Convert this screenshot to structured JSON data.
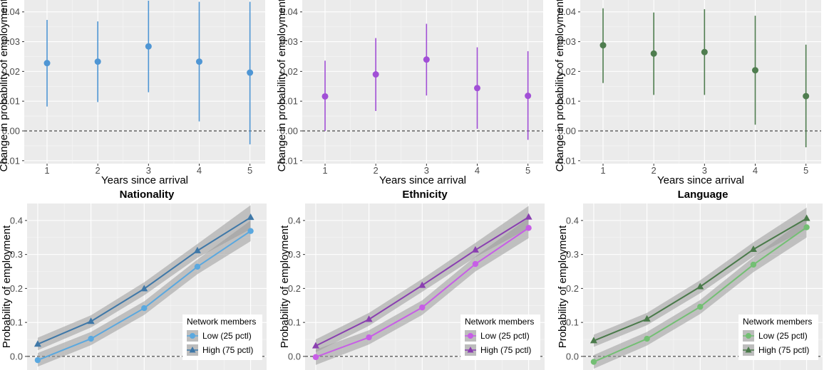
{
  "chart_data": [
    {
      "type": "scatter",
      "subtype": "point-range",
      "color": "#4f96d4",
      "marker": "circle",
      "title": "",
      "xlabel": "Years since arrival",
      "ylabel": "Change in probability of employment (",
      "x": [
        1,
        2,
        3,
        4,
        5
      ],
      "y": [
        0.0228,
        0.0233,
        0.0284,
        0.0233,
        0.0196
      ],
      "lower": [
        0.0082,
        0.0097,
        0.013,
        0.0032,
        -0.0045
      ],
      "upper": [
        0.0373,
        0.0368,
        0.0438,
        0.0434,
        0.0434
      ],
      "xticks": [
        "1",
        "2",
        "3",
        "4",
        "5"
      ],
      "yticks": [
        "-0.01",
        "0.00",
        "0.01",
        "0.02",
        "0.03",
        "0.04"
      ],
      "ylim": [
        -0.011,
        0.044
      ],
      "reference_line": 0
    },
    {
      "type": "scatter",
      "subtype": "point-range",
      "color": "#a14fd6",
      "marker": "circle",
      "title": "",
      "xlabel": "Years since arrival",
      "ylabel": "Change in probability of employment (",
      "x": [
        1,
        2,
        3,
        4,
        5
      ],
      "y": [
        0.0116,
        0.019,
        0.024,
        0.0144,
        0.0118
      ],
      "lower": [
        0.0,
        0.0067,
        0.0119,
        0.0007,
        -0.003
      ],
      "upper": [
        0.0236,
        0.0312,
        0.036,
        0.0281,
        0.0268
      ],
      "xticks": [
        "1",
        "2",
        "3",
        "4",
        "5"
      ],
      "yticks": [
        "-0.01",
        "0.00",
        "0.01",
        "0.02",
        "0.03",
        "0.04"
      ],
      "ylim": [
        -0.011,
        0.044
      ],
      "reference_line": 0
    },
    {
      "type": "scatter",
      "subtype": "point-range",
      "color": "#4f7d4f",
      "marker": "circle",
      "title": "",
      "xlabel": "Years since arrival",
      "ylabel": "Change in probability of employment (",
      "x": [
        1,
        2,
        3,
        4,
        5
      ],
      "y": [
        0.0288,
        0.026,
        0.0265,
        0.0204,
        0.0117
      ],
      "lower": [
        0.0161,
        0.0121,
        0.0121,
        0.0021,
        -0.0055
      ],
      "upper": [
        0.0412,
        0.0398,
        0.0409,
        0.0387,
        0.029
      ],
      "xticks": [
        "1",
        "2",
        "3",
        "4",
        "5"
      ],
      "yticks": [
        "-0.01",
        "0.00",
        "0.01",
        "0.02",
        "0.03",
        "0.04"
      ],
      "ylim": [
        -0.011,
        0.044
      ],
      "reference_line": 0
    },
    {
      "type": "line",
      "title": "Nationality",
      "xlabel": "",
      "ylabel": "Probability of employment",
      "x": [
        1,
        2,
        3,
        4,
        5
      ],
      "yticks": [
        "0.0",
        "0.1",
        "0.2",
        "0.3",
        "0.4"
      ],
      "ylim": [
        -0.04,
        0.45
      ],
      "reference_line": 0,
      "legend_title": "Network members",
      "legend_position": "bottom-right",
      "series": [
        {
          "name": "Low (25 pctl)",
          "color": "#5aa8df",
          "marker": "circle",
          "values": [
            -0.011,
            0.052,
            0.142,
            0.264,
            0.369
          ],
          "lower": [
            -0.03,
            0.033,
            0.122,
            0.242,
            0.339
          ],
          "upper": [
            0.01,
            0.072,
            0.162,
            0.285,
            0.4
          ]
        },
        {
          "name": "High (75 pctl)",
          "color": "#3f78a8",
          "marker": "triangle",
          "values": [
            0.036,
            0.103,
            0.199,
            0.311,
            0.409
          ],
          "lower": [
            0.018,
            0.085,
            0.18,
            0.29,
            0.375
          ],
          "upper": [
            0.055,
            0.121,
            0.218,
            0.331,
            0.445
          ]
        }
      ]
    },
    {
      "type": "line",
      "title": "Ethnicity",
      "xlabel": "",
      "ylabel": "Probability of employment",
      "x": [
        1,
        2,
        3,
        4,
        5
      ],
      "yticks": [
        "0.0",
        "0.1",
        "0.2",
        "0.3",
        "0.4"
      ],
      "ylim": [
        -0.04,
        0.45
      ],
      "reference_line": 0,
      "legend_title": "Network members",
      "legend_position": "bottom-right",
      "series": [
        {
          "name": "Low (25 pctl)",
          "color": "#c75ee6",
          "marker": "circle",
          "values": [
            -0.002,
            0.056,
            0.144,
            0.272,
            0.378
          ],
          "lower": [
            -0.025,
            0.035,
            0.122,
            0.25,
            0.348
          ],
          "upper": [
            0.02,
            0.077,
            0.165,
            0.294,
            0.408
          ]
        },
        {
          "name": "High (75 pctl)",
          "color": "#8a3fb0",
          "marker": "triangle",
          "values": [
            0.031,
            0.109,
            0.209,
            0.313,
            0.41
          ],
          "lower": [
            0.012,
            0.09,
            0.19,
            0.292,
            0.377
          ],
          "upper": [
            0.05,
            0.128,
            0.228,
            0.334,
            0.443
          ]
        }
      ]
    },
    {
      "type": "line",
      "title": "Language",
      "xlabel": "",
      "ylabel": "Probability of employment",
      "x": [
        1,
        2,
        3,
        4,
        5
      ],
      "yticks": [
        "0.0",
        "0.1",
        "0.2",
        "0.3",
        "0.4"
      ],
      "ylim": [
        -0.04,
        0.45
      ],
      "reference_line": 0,
      "legend_title": "Network members",
      "legend_position": "bottom-right",
      "series": [
        {
          "name": "Low (25 pctl)",
          "color": "#73bf73",
          "marker": "circle",
          "values": [
            -0.016,
            0.052,
            0.146,
            0.27,
            0.38
          ],
          "lower": [
            -0.036,
            0.032,
            0.125,
            0.248,
            0.35
          ],
          "upper": [
            0.004,
            0.072,
            0.166,
            0.292,
            0.41
          ]
        },
        {
          "name": "High (75 pctl)",
          "color": "#4a7a4a",
          "marker": "triangle",
          "values": [
            0.046,
            0.11,
            0.205,
            0.315,
            0.406
          ],
          "lower": [
            0.028,
            0.092,
            0.186,
            0.294,
            0.374
          ],
          "upper": [
            0.064,
            0.128,
            0.224,
            0.336,
            0.438
          ]
        }
      ]
    }
  ]
}
